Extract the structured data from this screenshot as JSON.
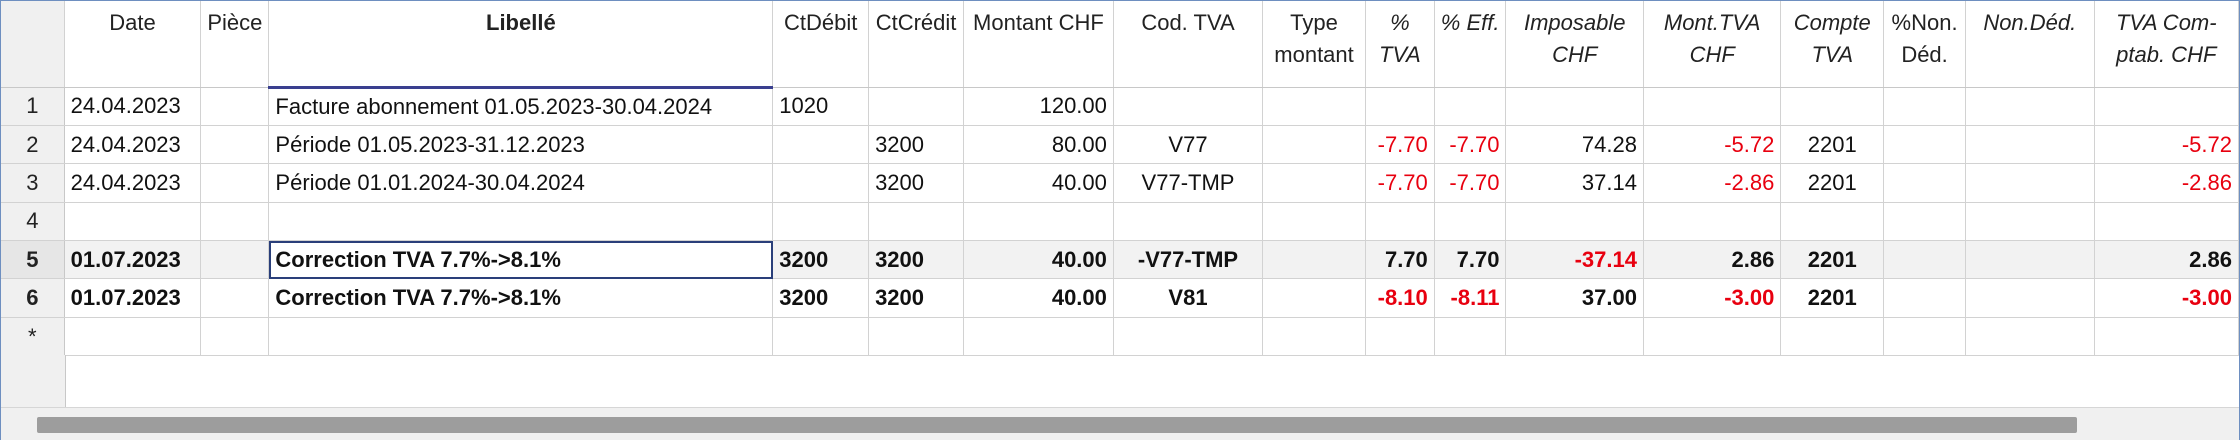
{
  "columns": {
    "date": "Date",
    "piece": "Pièce",
    "libelle": "Libellé",
    "ctdebit": "CtDébit",
    "ctcredit": "CtCrédit",
    "montant": "Montant CHF",
    "codtva": "Cod. TVA",
    "type_l1": "Type",
    "type_l2": "montant",
    "pcttva_l1": "%",
    "pcttva_l2": "TVA",
    "pcteff": "% Eff.",
    "imposable_l1": "Imposable",
    "imposable_l2": "CHF",
    "monttva_l1": "Mont.TVA",
    "monttva_l2": "CHF",
    "compte_l1": "Compte",
    "compte_l2": "TVA",
    "pctnon_l1": "%Non.",
    "pctnon_l2": "Déd.",
    "nonded": "Non.Déd.",
    "tvacomp_l1": "TVA Com-",
    "tvacomp_l2": "ptab. CHF"
  },
  "rows": [
    {
      "num": "1",
      "date": "24.04.2023",
      "piece": "",
      "libelle": "Facture abonnement 01.05.2023-30.04.2024",
      "ctdebit": "1020",
      "ctcredit": "",
      "montant": "120.00",
      "codtva": "",
      "type": "",
      "pcttva": "",
      "pcteff": "",
      "imposable": "",
      "monttva": "",
      "compte": "",
      "pctnon": "",
      "nonded": "",
      "tvacomp": ""
    },
    {
      "num": "2",
      "date": "24.04.2023",
      "piece": "",
      "libelle": "Période 01.05.2023-31.12.2023",
      "ctdebit": "",
      "ctcredit": "3200",
      "montant": "80.00",
      "codtva": "V77",
      "type": "",
      "pcttva": "-7.70",
      "pcteff": "-7.70",
      "imposable": "74.28",
      "monttva": "-5.72",
      "compte": "2201",
      "pctnon": "",
      "nonded": "",
      "tvacomp": "-5.72"
    },
    {
      "num": "3",
      "date": "24.04.2023",
      "piece": "",
      "libelle": "Période 01.01.2024-30.04.2024",
      "ctdebit": "",
      "ctcredit": "3200",
      "montant": "40.00",
      "codtva": "V77-TMP",
      "type": "",
      "pcttva": "-7.70",
      "pcteff": "-7.70",
      "imposable": "37.14",
      "monttva": "-2.86",
      "compte": "2201",
      "pctnon": "",
      "nonded": "",
      "tvacomp": "-2.86"
    },
    {
      "num": "4",
      "date": "",
      "piece": "",
      "libelle": "",
      "ctdebit": "",
      "ctcredit": "",
      "montant": "",
      "codtva": "",
      "type": "",
      "pcttva": "",
      "pcteff": "",
      "imposable": "",
      "monttva": "",
      "compte": "",
      "pctnon": "",
      "nonded": "",
      "tvacomp": ""
    },
    {
      "num": "5",
      "date": "01.07.2023",
      "piece": "",
      "libelle": "Correction TVA 7.7%->8.1%",
      "ctdebit": "3200",
      "ctcredit": "3200",
      "montant": "40.00",
      "codtva": "-V77-TMP",
      "type": "",
      "pcttva": "7.70",
      "pcteff": "7.70",
      "imposable": "-37.14",
      "monttva": "2.86",
      "compte": "2201",
      "pctnon": "",
      "nonded": "",
      "tvacomp": "2.86"
    },
    {
      "num": "6",
      "date": "01.07.2023",
      "piece": "",
      "libelle": "Correction TVA 7.7%->8.1%",
      "ctdebit": "3200",
      "ctcredit": "3200",
      "montant": "40.00",
      "codtva": "V81",
      "type": "",
      "pcttva": "-8.10",
      "pcteff": "-8.11",
      "imposable": "37.00",
      "monttva": "-3.00",
      "compte": "2201",
      "pctnon": "",
      "nonded": "",
      "tvacomp": "-3.00"
    },
    {
      "num": "*",
      "date": "",
      "piece": "",
      "libelle": "",
      "ctdebit": "",
      "ctcredit": "",
      "montant": "",
      "codtva": "",
      "type": "",
      "pcttva": "",
      "pcteff": "",
      "imposable": "",
      "monttva": "",
      "compte": "",
      "pctnon": "",
      "nonded": "",
      "tvacomp": ""
    }
  ],
  "colors": {
    "negative": "#e8000f",
    "selection_border": "#2a3f7a",
    "header_underline": "#3a3f8f"
  }
}
